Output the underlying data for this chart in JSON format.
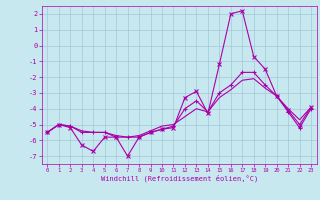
{
  "xlabel": "Windchill (Refroidissement éolien,°C)",
  "x": [
    0,
    1,
    2,
    3,
    4,
    5,
    6,
    7,
    8,
    9,
    10,
    11,
    12,
    13,
    14,
    15,
    16,
    17,
    18,
    19,
    20,
    21,
    22,
    23
  ],
  "line1": [
    -5.5,
    -5.0,
    -5.2,
    -6.3,
    -6.7,
    -5.8,
    -5.8,
    -7.0,
    -5.8,
    -5.5,
    -5.3,
    -5.2,
    -3.3,
    -2.9,
    -4.3,
    -1.2,
    2.0,
    2.2,
    -0.7,
    -1.5,
    -3.2,
    -4.1,
    -5.0,
    -3.9
  ],
  "line2": [
    -5.5,
    -5.0,
    -5.1,
    -5.5,
    -5.5,
    -5.5,
    -5.8,
    -5.8,
    -5.8,
    -5.5,
    -5.3,
    -5.1,
    -4.0,
    -3.5,
    -4.2,
    -3.0,
    -2.5,
    -1.7,
    -1.7,
    -2.5,
    -3.2,
    -4.2,
    -5.2,
    -4.0
  ],
  "line3": [
    -5.5,
    -5.0,
    -5.1,
    -5.4,
    -5.5,
    -5.5,
    -5.7,
    -5.8,
    -5.7,
    -5.4,
    -5.1,
    -5.0,
    -4.5,
    -4.0,
    -4.2,
    -3.3,
    -2.8,
    -2.2,
    -2.1,
    -2.7,
    -3.2,
    -4.0,
    -4.7,
    -3.9
  ],
  "bg_color": "#c8e8f0",
  "grid_color": "#a0c8d8",
  "line_color": "#aa00aa",
  "ylim": [
    -7.5,
    2.5
  ],
  "yticks": [
    -7,
    -6,
    -5,
    -4,
    -3,
    -2,
    -1,
    0,
    1,
    2
  ],
  "xticks": [
    0,
    1,
    2,
    3,
    4,
    5,
    6,
    7,
    8,
    9,
    10,
    11,
    12,
    13,
    14,
    15,
    16,
    17,
    18,
    19,
    20,
    21,
    22,
    23
  ]
}
